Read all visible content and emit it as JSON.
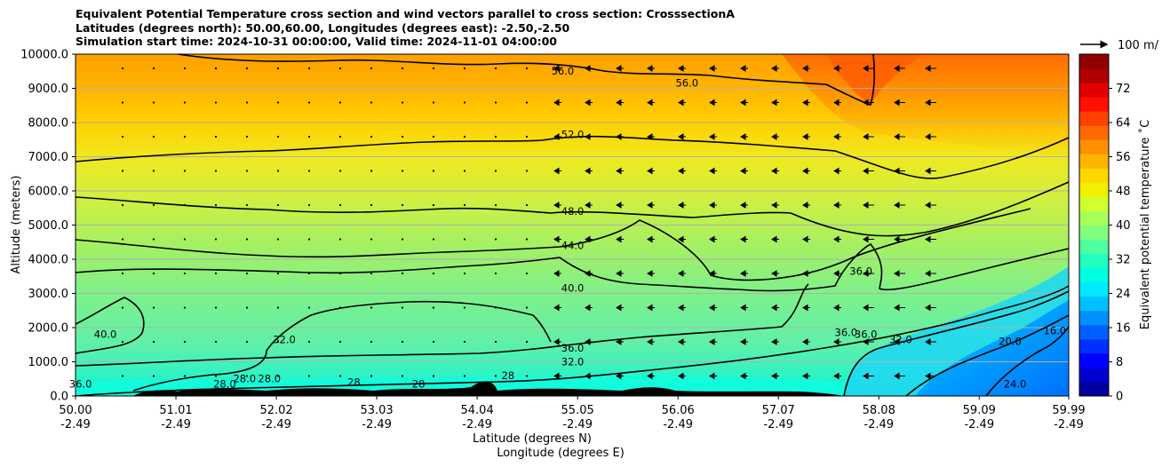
{
  "chart_data": {
    "type": "contour",
    "title_lines": [
      "Equivalent Potential Temperature cross section and wind vectors parallel to cross section: CrosssectionA",
      "Latitudes (degrees north): 50.00,60.00, Longitudes (degrees east): -2.50,-2.50",
      "Simulation start time: 2024-10-31 00:00:00, Valid time: 2024-11-01 04:00:00"
    ],
    "ylabel": "Altitude (meters)",
    "xlabel_lat": "Latitude (degrees N)",
    "xlabel_lon": "Longitude (degrees E)",
    "ylim": [
      0,
      10000
    ],
    "y_ticks": [
      "0.0",
      "1000.0",
      "2000.0",
      "3000.0",
      "4000.0",
      "5000.0",
      "6000.0",
      "7000.0",
      "8000.0",
      "9000.0",
      "10000.0"
    ],
    "x_ticks": [
      {
        "lat": "50.00",
        "lon": "-2.49"
      },
      {
        "lat": "51.01",
        "lon": "-2.49"
      },
      {
        "lat": "52.02",
        "lon": "-2.49"
      },
      {
        "lat": "53.03",
        "lon": "-2.49"
      },
      {
        "lat": "54.04",
        "lon": "-2.49"
      },
      {
        "lat": "55.05",
        "lon": "-2.49"
      },
      {
        "lat": "56.06",
        "lon": "-2.49"
      },
      {
        "lat": "57.07",
        "lon": "-2.49"
      },
      {
        "lat": "58.08",
        "lon": "-2.49"
      },
      {
        "lat": "59.09",
        "lon": "-2.49"
      },
      {
        "lat": "59.99",
        "lon": "-2.49"
      }
    ],
    "grid": "horizontal",
    "colorbar": {
      "label": "Equivalent potential temperature ˚C",
      "range": [
        0,
        80
      ],
      "ticks": [
        "0",
        "8",
        "16",
        "24",
        "32",
        "40",
        "48",
        "56",
        "64",
        "72"
      ]
    },
    "quiver_key": "100 m/",
    "contour_labels": [
      {
        "text": "56.0",
        "lat": 54.9,
        "alt": 9400
      },
      {
        "text": "56.0",
        "lat": 56.15,
        "alt": 9050
      },
      {
        "text": "52.0",
        "lat": 55.0,
        "alt": 7550
      },
      {
        "text": "48.0",
        "lat": 55.0,
        "alt": 5300
      },
      {
        "text": "44.0",
        "lat": 55.0,
        "alt": 4300
      },
      {
        "text": "40.0",
        "lat": 55.0,
        "alt": 3050
      },
      {
        "text": "36.0",
        "lat": 55.0,
        "alt": 1300
      },
      {
        "text": "32.0",
        "lat": 55.0,
        "alt": 900
      },
      {
        "text": "40.0",
        "lat": 50.3,
        "alt": 1700
      },
      {
        "text": "32.0",
        "lat": 52.1,
        "alt": 1550
      },
      {
        "text": "36.0",
        "lat": 50.05,
        "alt": 250
      },
      {
        "text": "28.0",
        "lat": 51.7,
        "alt": 400
      },
      {
        "text": "28.0",
        "lat": 51.95,
        "alt": 400
      },
      {
        "text": "28.0",
        "lat": 51.5,
        "alt": 250
      },
      {
        "text": "28",
        "lat": 52.8,
        "alt": 300
      },
      {
        "text": "28",
        "lat": 53.45,
        "alt": 250
      },
      {
        "text": "28",
        "lat": 54.35,
        "alt": 500
      },
      {
        "text": "36.0",
        "lat": 57.9,
        "alt": 3550
      },
      {
        "text": "36.0",
        "lat": 57.75,
        "alt": 1750
      },
      {
        "text": "36.0",
        "lat": 57.95,
        "alt": 1700
      },
      {
        "text": "32.0",
        "lat": 58.3,
        "alt": 1550
      },
      {
        "text": "20.0",
        "lat": 59.4,
        "alt": 1500
      },
      {
        "text": "16.0",
        "lat": 59.85,
        "alt": 1800
      },
      {
        "text": "24.0",
        "lat": 59.45,
        "alt": 250
      }
    ]
  }
}
